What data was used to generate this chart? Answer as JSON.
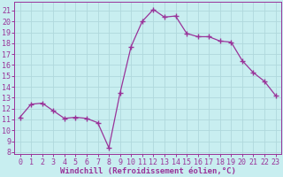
{
  "x": [
    0,
    1,
    2,
    3,
    4,
    5,
    6,
    7,
    8,
    9,
    10,
    11,
    12,
    13,
    14,
    15,
    16,
    17,
    18,
    19,
    20,
    21,
    22,
    23
  ],
  "y": [
    11.2,
    12.4,
    12.5,
    11.8,
    11.1,
    11.2,
    11.1,
    10.7,
    8.4,
    13.4,
    17.7,
    20.0,
    21.1,
    20.4,
    20.5,
    18.9,
    18.6,
    18.6,
    18.2,
    18.1,
    16.4,
    15.3,
    14.5,
    13.2
  ],
  "line_color": "#993399",
  "marker": "+",
  "marker_size": 4,
  "bg_color": "#c8eef0",
  "grid_color": "#b0d8dc",
  "xlabel": "Windchill (Refroidissement éolien,°C)",
  "xlim": [
    -0.5,
    23.5
  ],
  "ylim": [
    7.8,
    21.8
  ],
  "yticks": [
    8,
    9,
    10,
    11,
    12,
    13,
    14,
    15,
    16,
    17,
    18,
    19,
    20,
    21
  ],
  "xticks": [
    0,
    1,
    2,
    3,
    4,
    5,
    6,
    7,
    8,
    9,
    10,
    11,
    12,
    13,
    14,
    15,
    16,
    17,
    18,
    19,
    20,
    21,
    22,
    23
  ],
  "xlabel_fontsize": 6.5,
  "tick_fontsize": 6.0
}
